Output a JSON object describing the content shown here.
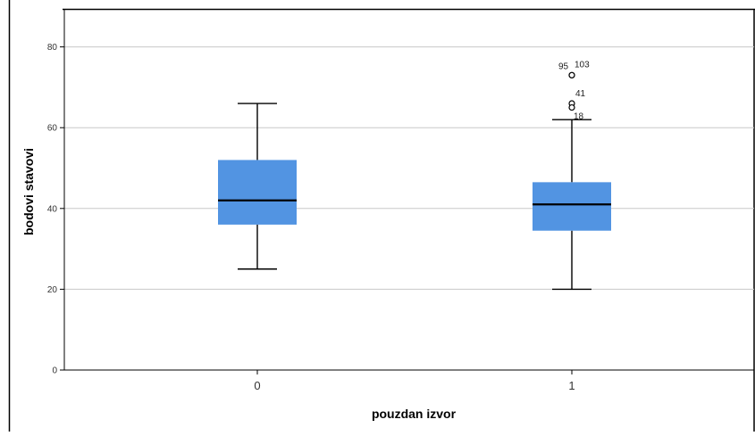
{
  "chart_data": {
    "type": "box",
    "xlabel": "pouzdan izvor",
    "ylabel": "bodovi stavovi",
    "ylim": [
      0,
      85
    ],
    "y_ticks": [
      0,
      20,
      40,
      60,
      80
    ],
    "grid": true,
    "categories": [
      "0",
      "1"
    ],
    "boxes": [
      {
        "category": "0",
        "whisker_low": 25,
        "q1": 36,
        "median": 42,
        "q3": 52,
        "whisker_high": 66,
        "outliers": []
      },
      {
        "category": "1",
        "whisker_low": 20,
        "q1": 34.5,
        "median": 41,
        "q3": 46.5,
        "whisker_high": 62,
        "outliers": [
          {
            "value": 73,
            "label": "95"
          },
          {
            "value": 73,
            "label": "103"
          },
          {
            "value": 66,
            "label": "41"
          },
          {
            "value": 65,
            "label": "18"
          }
        ]
      }
    ],
    "colors": {
      "box_fill": "#5294e2",
      "grid": "#c8c8c8",
      "axis": "#000000"
    }
  }
}
